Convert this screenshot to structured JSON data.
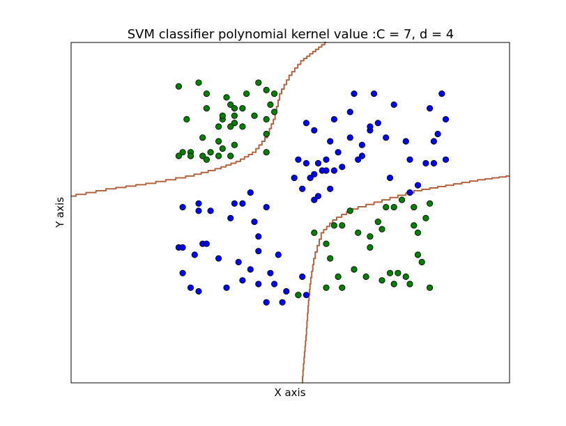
{
  "chart_data": {
    "type": "scatter",
    "title": "SVM classifier polynomial kernel value :C = 7, d = 4",
    "xlabel": "X axis",
    "ylabel": "Y axis",
    "xlim": [
      -5.5,
      5.5
    ],
    "ylim": [
      -5.3,
      4.0
    ],
    "ticks": "none",
    "grid": false,
    "colors": {
      "class_blue": "#0000ff",
      "class_green": "#008000",
      "marker_edge": "#000000",
      "boundary": "#b5623f",
      "axes_frame": "#000000",
      "background": "#ffffff"
    },
    "series": [
      {
        "color": "#0000ff",
        "points": [
          [
            0.1,
            0.3
          ],
          [
            0.4,
            1.8
          ],
          [
            0.6,
            1.6
          ],
          [
            0.2,
            0.8
          ],
          [
            1.5,
            1.4
          ],
          [
            1.8,
            0.9
          ],
          [
            0.9,
            0.5
          ],
          [
            0.5,
            0.3
          ],
          [
            1.0,
            0.0
          ],
          [
            2.5,
            0.3
          ],
          [
            1.1,
            1.9
          ],
          [
            1.5,
            2.1
          ],
          [
            2.4,
            1.4
          ],
          [
            2.6,
            2.3
          ],
          [
            3.5,
            2.2
          ],
          [
            3.7,
            1.5
          ],
          [
            1.8,
            1.2
          ],
          [
            1.0,
            1.3
          ],
          [
            2.0,
            1.6
          ],
          [
            0.7,
            0.7
          ],
          [
            0.3,
            0.0
          ],
          [
            0.7,
            -0.2
          ],
          [
            1.3,
            0.6
          ],
          [
            3.0,
            -0.1
          ],
          [
            3.2,
            0.1
          ],
          [
            3.4,
            0.7
          ],
          [
            2.2,
            1.8
          ],
          [
            2.0,
            1.7
          ],
          [
            1.2,
            1.0
          ],
          [
            1.7,
            0.8
          ],
          [
            2.9,
            1.3
          ],
          [
            3.0,
            0.8
          ],
          [
            3.9,
            0.8
          ],
          [
            3.6,
            1.3
          ],
          [
            0.4,
            0.7
          ],
          [
            0.8,
            0.5
          ],
          [
            3.6,
            0.7
          ],
          [
            1.6,
            2.6
          ],
          [
            2.1,
            2.6
          ],
          [
            3.8,
            2.6
          ],
          [
            3.9,
            1.9
          ],
          [
            0.6,
            0.4
          ],
          [
            0.9,
            0.8
          ],
          [
            1.1,
            0.5
          ],
          [
            -2.7,
            -0.5
          ],
          [
            -2.3,
            -0.4
          ],
          [
            -2.0,
            -0.6
          ],
          [
            -1.4,
            -0.4
          ],
          [
            -2.2,
            -1.5
          ],
          [
            -2.8,
            -1.6
          ],
          [
            -2.4,
            -1.8
          ],
          [
            -1.3,
            -2.0
          ],
          [
            -0.8,
            -1.7
          ],
          [
            -0.3,
            -1.8
          ],
          [
            -2.7,
            -2.3
          ],
          [
            -2.3,
            -2.8
          ],
          [
            -1.6,
            -2.7
          ],
          [
            -0.8,
            -1.3
          ],
          [
            -0.8,
            -2.6
          ],
          [
            -1.5,
            -0.8
          ],
          [
            -2.3,
            -0.6
          ],
          [
            -1.0,
            -0.1
          ],
          [
            -0.6,
            -0.5
          ],
          [
            -1.2,
            -0.4
          ],
          [
            -0.4,
            -2.6
          ],
          [
            -0.6,
            -3.1
          ],
          [
            -0.2,
            -3.1
          ],
          [
            0.3,
            -2.4
          ],
          [
            0.4,
            -2.9
          ],
          [
            0.2,
            -2.9
          ],
          [
            -1.0,
            -2.2
          ],
          [
            -1.2,
            -2.5
          ],
          [
            -2.5,
            -2.7
          ],
          [
            -2.7,
            -1.6
          ],
          [
            -2.1,
            -1.5
          ],
          [
            -0.1,
            -2.8
          ],
          [
            0.6,
            -0.3
          ],
          [
            -1.8,
            -1.9
          ],
          [
            -0.9,
            -0.9
          ],
          [
            -0.5,
            -2.3
          ]
        ]
      },
      {
        "color": "#008000",
        "points": [
          [
            -2.8,
            2.8
          ],
          [
            -2.3,
            2.9
          ],
          [
            -2.1,
            2.6
          ],
          [
            -1.6,
            2.5
          ],
          [
            -1.1,
            2.6
          ],
          [
            -0.8,
            2.9
          ],
          [
            -0.6,
            2.7
          ],
          [
            -0.4,
            2.6
          ],
          [
            -1.4,
            1.8
          ],
          [
            -0.6,
            1.9
          ],
          [
            -0.5,
            2.3
          ],
          [
            -2.6,
            1.9
          ],
          [
            -1.8,
            1.7
          ],
          [
            -1.7,
            1.9
          ],
          [
            -1.4,
            1.8
          ],
          [
            -1.7,
            2.0
          ],
          [
            -1.2,
            1.7
          ],
          [
            -0.9,
            2.0
          ],
          [
            -1.8,
            1.3
          ],
          [
            -2.2,
            1.4
          ],
          [
            -2.0,
            1.0
          ],
          [
            -2.5,
            1.0
          ],
          [
            -1.7,
            1.1
          ],
          [
            -1.4,
            1.2
          ],
          [
            -0.6,
            1.5
          ],
          [
            -1.5,
            0.9
          ],
          [
            -1.8,
            0.9
          ],
          [
            -2.2,
            0.9
          ],
          [
            -2.1,
            0.8
          ],
          [
            -2.5,
            0.9
          ],
          [
            -2.8,
            0.9
          ],
          [
            -2.7,
            1.0
          ],
          [
            -1.5,
            1.7
          ],
          [
            -0.6,
            1.0
          ],
          [
            -0.4,
            2.1
          ],
          [
            -1.4,
            2.0
          ],
          [
            -2.1,
            2.2
          ],
          [
            -1.4,
            2.2
          ],
          [
            -1.2,
            2.2
          ],
          [
            -1.5,
            2.3
          ],
          [
            2.3,
            -1.1
          ],
          [
            2.0,
            -1.3
          ],
          [
            2.4,
            -0.5
          ],
          [
            1.1,
            -1.0
          ],
          [
            0.9,
            -1.5
          ],
          [
            1.5,
            -0.6
          ],
          [
            2.2,
            -0.9
          ],
          [
            2.8,
            -0.3
          ],
          [
            2.6,
            -0.5
          ],
          [
            1.7,
            -1.2
          ],
          [
            1.6,
            -2.2
          ],
          [
            1.2,
            -2.4
          ],
          [
            1.0,
            -1.9
          ],
          [
            0.6,
            -1.2
          ],
          [
            1.3,
            -2.7
          ],
          [
            0.9,
            -2.7
          ],
          [
            1.9,
            -2.4
          ],
          [
            2.3,
            -2.5
          ],
          [
            2.6,
            -2.6
          ],
          [
            3.0,
            -2.6
          ],
          [
            3.3,
            -2.0
          ],
          [
            3.2,
            -1.8
          ],
          [
            3.2,
            -1.2
          ],
          [
            3.1,
            -1.0
          ],
          [
            3.5,
            -0.4
          ],
          [
            3.1,
            -0.5
          ],
          [
            2.9,
            -2.4
          ],
          [
            2.5,
            -2.3
          ],
          [
            3.5,
            -2.7
          ],
          [
            3.4,
            -0.8
          ],
          [
            0.2,
            -2.9
          ],
          [
            2.7,
            -2.3
          ],
          [
            1.3,
            -1.0
          ],
          [
            2.0,
            -1.6
          ]
        ]
      }
    ],
    "decision_boundary": [
      [
        [
          -5.5,
          -0.2
        ],
        [
          -4.5,
          0.0
        ],
        [
          -3.5,
          0.15
        ],
        [
          -2.5,
          0.35
        ],
        [
          -1.8,
          0.55
        ],
        [
          -1.3,
          0.75
        ],
        [
          -0.9,
          1.0
        ],
        [
          -0.6,
          1.4
        ],
        [
          -0.4,
          1.9
        ],
        [
          -0.25,
          2.6
        ],
        [
          0.0,
          3.1
        ],
        [
          0.3,
          3.5
        ],
        [
          0.6,
          3.75
        ],
        [
          0.9,
          4.0
        ]
      ],
      [
        [
          0.3,
          -5.3
        ],
        [
          0.35,
          -4.6
        ],
        [
          0.4,
          -4.0
        ],
        [
          0.45,
          -3.2
        ],
        [
          0.5,
          -2.6
        ],
        [
          0.6,
          -1.9
        ],
        [
          0.8,
          -1.2
        ],
        [
          1.1,
          -0.85
        ],
        [
          1.6,
          -0.55
        ],
        [
          2.4,
          -0.3
        ],
        [
          3.2,
          -0.05
        ],
        [
          4.0,
          0.1
        ],
        [
          4.8,
          0.25
        ],
        [
          5.5,
          0.35
        ]
      ]
    ]
  }
}
